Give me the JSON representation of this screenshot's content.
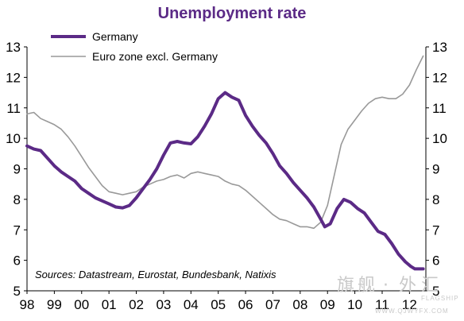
{
  "chart_data": {
    "type": "line",
    "title": "Unemployment rate",
    "source_note": "Sources: Datastream, Eurostat, Bundesbank, Natixis",
    "ylim": [
      5,
      13
    ],
    "yticks": [
      5,
      6,
      7,
      8,
      9,
      10,
      11,
      12,
      13
    ],
    "xlim": [
      1998,
      2012.6
    ],
    "xticks": [
      {
        "value": 1998,
        "label": "98"
      },
      {
        "value": 1999,
        "label": "99"
      },
      {
        "value": 2000,
        "label": "00"
      },
      {
        "value": 2001,
        "label": "01"
      },
      {
        "value": 2002,
        "label": "02"
      },
      {
        "value": 2003,
        "label": "03"
      },
      {
        "value": 2004,
        "label": "04"
      },
      {
        "value": 2005,
        "label": "05"
      },
      {
        "value": 2006,
        "label": "06"
      },
      {
        "value": 2007,
        "label": "07"
      },
      {
        "value": 2008,
        "label": "08"
      },
      {
        "value": 2009,
        "label": "09"
      },
      {
        "value": 2010,
        "label": "10"
      },
      {
        "value": 2011,
        "label": "11"
      },
      {
        "value": 2012,
        "label": "12"
      }
    ],
    "legend_position": "top-left",
    "grid": false,
    "series": [
      {
        "name": "Germany",
        "color": "#5b2a86",
        "points": [
          [
            1998.0,
            9.75
          ],
          [
            1998.25,
            9.65
          ],
          [
            1998.5,
            9.6
          ],
          [
            1998.75,
            9.35
          ],
          [
            1999.0,
            9.1
          ],
          [
            1999.25,
            8.9
          ],
          [
            1999.5,
            8.75
          ],
          [
            1999.75,
            8.6
          ],
          [
            2000.0,
            8.35
          ],
          [
            2000.25,
            8.2
          ],
          [
            2000.5,
            8.05
          ],
          [
            2000.75,
            7.95
          ],
          [
            2001.0,
            7.85
          ],
          [
            2001.25,
            7.75
          ],
          [
            2001.5,
            7.72
          ],
          [
            2001.75,
            7.8
          ],
          [
            2002.0,
            8.05
          ],
          [
            2002.25,
            8.35
          ],
          [
            2002.5,
            8.65
          ],
          [
            2002.75,
            9.0
          ],
          [
            2003.0,
            9.45
          ],
          [
            2003.25,
            9.85
          ],
          [
            2003.5,
            9.9
          ],
          [
            2003.75,
            9.85
          ],
          [
            2004.0,
            9.82
          ],
          [
            2004.25,
            10.05
          ],
          [
            2004.5,
            10.4
          ],
          [
            2004.75,
            10.8
          ],
          [
            2005.0,
            11.3
          ],
          [
            2005.25,
            11.5
          ],
          [
            2005.5,
            11.35
          ],
          [
            2005.75,
            11.25
          ],
          [
            2006.0,
            10.75
          ],
          [
            2006.25,
            10.4
          ],
          [
            2006.5,
            10.1
          ],
          [
            2006.75,
            9.85
          ],
          [
            2007.0,
            9.5
          ],
          [
            2007.25,
            9.1
          ],
          [
            2007.5,
            8.85
          ],
          [
            2007.75,
            8.55
          ],
          [
            2008.0,
            8.3
          ],
          [
            2008.25,
            8.05
          ],
          [
            2008.5,
            7.75
          ],
          [
            2008.75,
            7.35
          ],
          [
            2008.9,
            7.1
          ],
          [
            2009.1,
            7.2
          ],
          [
            2009.35,
            7.7
          ],
          [
            2009.6,
            8.0
          ],
          [
            2009.85,
            7.9
          ],
          [
            2010.1,
            7.7
          ],
          [
            2010.35,
            7.55
          ],
          [
            2010.6,
            7.25
          ],
          [
            2010.85,
            6.95
          ],
          [
            2011.1,
            6.85
          ],
          [
            2011.35,
            6.55
          ],
          [
            2011.6,
            6.2
          ],
          [
            2011.85,
            5.95
          ],
          [
            2012.05,
            5.8
          ],
          [
            2012.2,
            5.72
          ],
          [
            2012.5,
            5.72
          ]
        ]
      },
      {
        "name": "Euro zone excl. Germany",
        "color": "#999999",
        "points": [
          [
            1998.0,
            10.8
          ],
          [
            1998.25,
            10.85
          ],
          [
            1998.5,
            10.65
          ],
          [
            1998.75,
            10.55
          ],
          [
            1999.0,
            10.45
          ],
          [
            1999.25,
            10.3
          ],
          [
            1999.5,
            10.05
          ],
          [
            1999.75,
            9.75
          ],
          [
            2000.0,
            9.4
          ],
          [
            2000.25,
            9.05
          ],
          [
            2000.5,
            8.75
          ],
          [
            2000.75,
            8.45
          ],
          [
            2001.0,
            8.25
          ],
          [
            2001.25,
            8.2
          ],
          [
            2001.5,
            8.15
          ],
          [
            2001.75,
            8.2
          ],
          [
            2002.0,
            8.25
          ],
          [
            2002.25,
            8.4
          ],
          [
            2002.5,
            8.5
          ],
          [
            2002.75,
            8.6
          ],
          [
            2003.0,
            8.65
          ],
          [
            2003.25,
            8.75
          ],
          [
            2003.5,
            8.8
          ],
          [
            2003.75,
            8.7
          ],
          [
            2004.0,
            8.85
          ],
          [
            2004.25,
            8.9
          ],
          [
            2004.5,
            8.85
          ],
          [
            2004.75,
            8.8
          ],
          [
            2005.0,
            8.75
          ],
          [
            2005.25,
            8.6
          ],
          [
            2005.5,
            8.5
          ],
          [
            2005.75,
            8.45
          ],
          [
            2006.0,
            8.3
          ],
          [
            2006.25,
            8.1
          ],
          [
            2006.5,
            7.9
          ],
          [
            2006.75,
            7.7
          ],
          [
            2007.0,
            7.5
          ],
          [
            2007.25,
            7.35
          ],
          [
            2007.5,
            7.3
          ],
          [
            2007.75,
            7.2
          ],
          [
            2008.0,
            7.1
          ],
          [
            2008.25,
            7.1
          ],
          [
            2008.5,
            7.05
          ],
          [
            2008.75,
            7.25
          ],
          [
            2009.0,
            7.8
          ],
          [
            2009.25,
            8.8
          ],
          [
            2009.5,
            9.8
          ],
          [
            2009.75,
            10.3
          ],
          [
            2010.0,
            10.6
          ],
          [
            2010.25,
            10.9
          ],
          [
            2010.5,
            11.15
          ],
          [
            2010.75,
            11.3
          ],
          [
            2011.0,
            11.35
          ],
          [
            2011.25,
            11.3
          ],
          [
            2011.5,
            11.3
          ],
          [
            2011.75,
            11.45
          ],
          [
            2012.0,
            11.75
          ],
          [
            2012.25,
            12.25
          ],
          [
            2012.5,
            12.7
          ]
        ]
      }
    ]
  },
  "watermark": {
    "chars": [
      "旗",
      "舰",
      "·",
      "外",
      "汇"
    ],
    "sub": "FLAGSHIP",
    "url": "WWW.QJWYFX.COM"
  }
}
